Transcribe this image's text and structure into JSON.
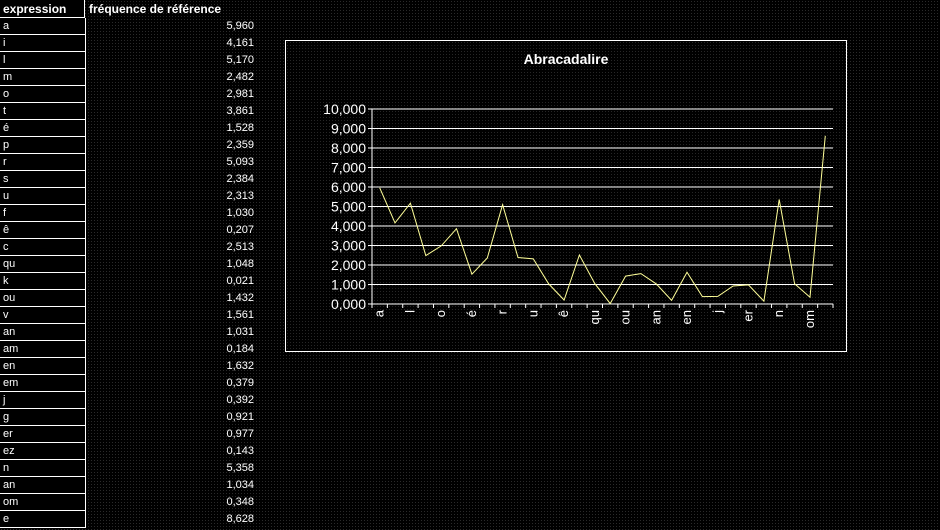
{
  "table": {
    "header_expression": "expression",
    "header_frequency": "fréquence de référence",
    "rows": [
      {
        "expression": "a",
        "frequency": "5,960"
      },
      {
        "expression": "i",
        "frequency": "4,161"
      },
      {
        "expression": "l",
        "frequency": "5,170"
      },
      {
        "expression": "m",
        "frequency": "2,482"
      },
      {
        "expression": "o",
        "frequency": "2,981"
      },
      {
        "expression": "t",
        "frequency": "3,861"
      },
      {
        "expression": "é",
        "frequency": "1,528"
      },
      {
        "expression": "p",
        "frequency": "2,359"
      },
      {
        "expression": "r",
        "frequency": "5,093"
      },
      {
        "expression": "s",
        "frequency": "2,384"
      },
      {
        "expression": "u",
        "frequency": "2,313"
      },
      {
        "expression": "f",
        "frequency": "1,030"
      },
      {
        "expression": "ê",
        "frequency": "0,207"
      },
      {
        "expression": "c",
        "frequency": "2,513"
      },
      {
        "expression": "qu",
        "frequency": "1,048"
      },
      {
        "expression": "k",
        "frequency": "0,021"
      },
      {
        "expression": "ou",
        "frequency": "1,432"
      },
      {
        "expression": "v",
        "frequency": "1,561"
      },
      {
        "expression": "an",
        "frequency": "1,031"
      },
      {
        "expression": "am",
        "frequency": "0,184"
      },
      {
        "expression": "en",
        "frequency": "1,632"
      },
      {
        "expression": "em",
        "frequency": "0,379"
      },
      {
        "expression": "j",
        "frequency": "0,392"
      },
      {
        "expression": "g",
        "frequency": "0,921"
      },
      {
        "expression": "er",
        "frequency": "0,977"
      },
      {
        "expression": "ez",
        "frequency": "0,143"
      },
      {
        "expression": "n",
        "frequency": "5,358"
      },
      {
        "expression": "an",
        "frequency": "1,034"
      },
      {
        "expression": "om",
        "frequency": "0,348"
      },
      {
        "expression": "e",
        "frequency": "8,628"
      }
    ]
  },
  "chart_data": {
    "type": "line",
    "title": "Abracadalire",
    "xlabel": "",
    "ylabel": "",
    "categories": [
      "a",
      "i",
      "l",
      "m",
      "o",
      "t",
      "é",
      "p",
      "r",
      "s",
      "u",
      "f",
      "ê",
      "c",
      "qu",
      "k",
      "ou",
      "v",
      "an",
      "am",
      "en",
      "em",
      "j",
      "g",
      "er",
      "ez",
      "n",
      "an",
      "om",
      "e"
    ],
    "visible_x_tick_labels": [
      "a",
      "l",
      "o",
      "é",
      "r",
      "u",
      "ê",
      "qu",
      "ou",
      "an",
      "en",
      "j",
      "er",
      "n",
      "om"
    ],
    "series": [
      {
        "values": [
          5.96,
          4.161,
          5.17,
          2.482,
          2.981,
          3.861,
          1.528,
          2.359,
          5.093,
          2.384,
          2.313,
          1.03,
          0.207,
          2.513,
          1.048,
          0.021,
          1.432,
          1.561,
          1.031,
          0.184,
          1.632,
          0.379,
          0.392,
          0.921,
          0.977,
          0.143,
          5.358,
          1.034,
          0.348,
          8.628
        ]
      }
    ],
    "ylim": [
      0,
      10
    ],
    "y_ticks": [
      "0,000",
      "1,000",
      "2,000",
      "3,000",
      "4,000",
      "5,000",
      "6,000",
      "7,000",
      "8,000",
      "9,000",
      "10,000"
    ],
    "grid": true,
    "legend": "none",
    "line_color": "#ffff99"
  }
}
